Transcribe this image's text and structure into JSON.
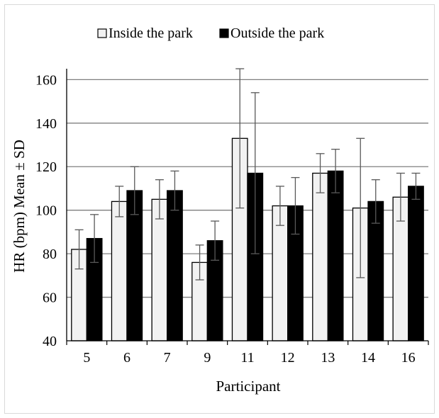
{
  "chart_data": {
    "type": "bar",
    "title": "",
    "xlabel": "Participant",
    "ylabel": "HR  (bpm) Mean ± SD",
    "ylim": [
      40,
      165
    ],
    "yticks": [
      40,
      60,
      80,
      100,
      120,
      140,
      160
    ],
    "grid": true,
    "legend_position": "top",
    "categories": [
      "5",
      "6",
      "7",
      "9",
      "11",
      "12",
      "13",
      "14",
      "16"
    ],
    "series": [
      {
        "name": "Inside the park",
        "color": "#f2f2f2",
        "values": [
          82,
          104,
          105,
          76,
          133,
          102,
          117,
          101,
          106
        ],
        "sd": [
          9,
          7,
          9,
          8,
          32,
          9,
          9,
          32,
          11
        ]
      },
      {
        "name": "Outside the park",
        "color": "#000000",
        "values": [
          87,
          109,
          109,
          86,
          117,
          102,
          118,
          104,
          111
        ],
        "sd": [
          11,
          11,
          9,
          9,
          37,
          13,
          10,
          10,
          6
        ]
      }
    ]
  }
}
